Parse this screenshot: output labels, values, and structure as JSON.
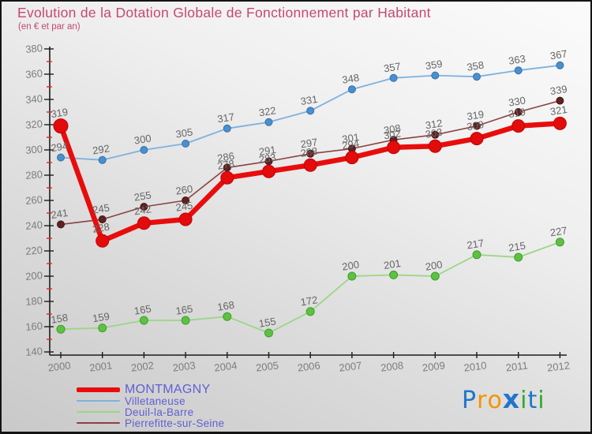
{
  "title": "Evolution de la Dotation Globale de Fonctionnement par Habitant",
  "subtitle": "(en € et par an)",
  "colors": {
    "title": "#c6486d",
    "legend_text": "#5f5fd3",
    "value_label": "#666666",
    "axis_tick_label": "#7d7d7d",
    "axis_line": "#1c1c1c",
    "minor_tick": "#e8241c",
    "background_top": "#fbfbfb",
    "background_bottom": "#c9c9c9"
  },
  "chart_data": {
    "type": "line",
    "x": [
      2000,
      2001,
      2002,
      2003,
      2004,
      2005,
      2006,
      2007,
      2008,
      2009,
      2010,
      2011,
      2012
    ],
    "series": [
      {
        "name": "MONTMAGNY",
        "values": [
          319,
          228,
          242,
          245,
          278,
          283,
          288,
          294,
          302,
          303,
          309,
          319,
          321
        ],
        "color": "#e80d0d",
        "marker_fill": "#e30b0b",
        "marker_stroke": "#c00505",
        "line_width": 6.5,
        "marker_radius": 8
      },
      {
        "name": "Villetaneuse",
        "values": [
          294,
          292,
          300,
          305,
          317,
          322,
          331,
          348,
          357,
          359,
          358,
          363,
          367
        ],
        "color": "#7db2e0",
        "marker_fill": "#4a90d0",
        "marker_stroke": "#366fa5",
        "line_width": 1.8,
        "marker_radius": 4.5
      },
      {
        "name": "Deuil-la-Barre",
        "values": [
          158,
          159,
          165,
          165,
          168,
          155,
          172,
          200,
          201,
          200,
          217,
          215,
          227
        ],
        "color": "#9bd685",
        "marker_fill": "#5fc143",
        "marker_stroke": "#3f9e2b",
        "line_width": 1.8,
        "marker_radius": 5
      },
      {
        "name": "Pierrefitte-sur-Seine",
        "values": [
          241,
          245,
          255,
          260,
          286,
          291,
          297,
          301,
          308,
          312,
          319,
          330,
          339
        ],
        "color": "#8c4242",
        "marker_fill": "#602120",
        "marker_stroke": "#471616",
        "line_width": 1.6,
        "marker_radius": 4.5
      }
    ],
    "ylim": [
      140,
      380
    ],
    "y_major_step": 20,
    "y_minor_step": 10,
    "xlabel": "",
    "ylabel": "",
    "grid": false,
    "legend_position": "bottom-left",
    "legend": [
      "MONTMAGNY",
      "Villetaneuse",
      "Deuil-la-Barre",
      "Pierrefitte-sur-Seine"
    ]
  },
  "logo": {
    "text": "Proxiti",
    "letters": [
      {
        "ch": "P",
        "color": "#2176cc"
      },
      {
        "ch": "r",
        "color": "#f59300"
      },
      {
        "ch": "o",
        "color": "#f59300"
      },
      {
        "ch": "x",
        "color": "#2176cc",
        "heavy": true
      },
      {
        "ch": "i",
        "color": "#35a82e"
      },
      {
        "ch": "t",
        "color": "#2176cc"
      },
      {
        "ch": "i",
        "color": "#35a82e"
      }
    ]
  }
}
